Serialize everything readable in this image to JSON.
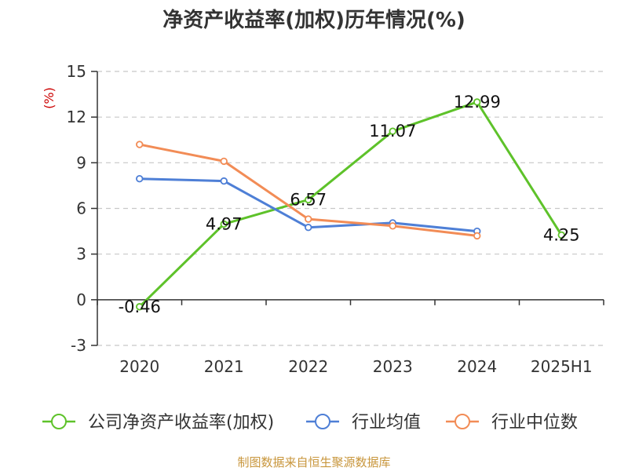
{
  "chart_data": {
    "type": "line",
    "title": "净资产收益率(加权)历年情况(%)",
    "ylabel": "(%)",
    "categories": [
      "2020",
      "2021",
      "2022",
      "2023",
      "2024",
      "2025H1"
    ],
    "ylim": [
      -3,
      15
    ],
    "yticks": [
      15,
      12,
      9,
      6,
      3,
      0,
      -3
    ],
    "grid": true,
    "legend_position": "bottom",
    "series": [
      {
        "name": "公司净资产收益率(加权)",
        "color": "#5ec22a",
        "values": [
          -0.46,
          4.97,
          6.57,
          11.07,
          12.99,
          4.25
        ],
        "labels": [
          "-0.46",
          "4.97",
          "6.57",
          "11.07",
          "12.99",
          "4.25"
        ]
      },
      {
        "name": "行业均值",
        "color": "#4e7fd6",
        "values": [
          7.95,
          7.8,
          4.75,
          5.05,
          4.5,
          null
        ]
      },
      {
        "name": "行业中位数",
        "color": "#f28c56",
        "values": [
          10.2,
          9.1,
          5.3,
          4.85,
          4.2,
          null
        ]
      }
    ]
  },
  "source": "制图数据来自恒生聚源数据库"
}
